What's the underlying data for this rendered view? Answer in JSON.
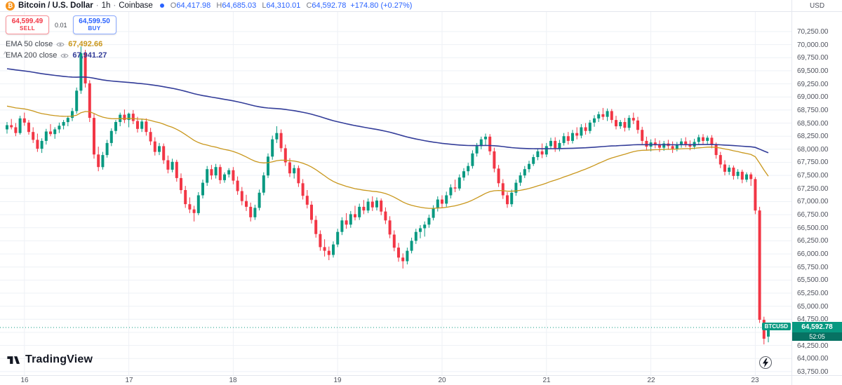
{
  "header": {
    "symbol": "Bitcoin / U.S. Dollar",
    "sep": "·",
    "interval": "1h",
    "exchange": "Coinbase",
    "ohlc": {
      "o_label": "O",
      "o": "64,417.98",
      "h_label": "H",
      "h": "64,685.03",
      "l_label": "L",
      "l": "64,310.01",
      "c_label": "C",
      "c": "64,592.78",
      "change": "+174.80 (+0.27%)",
      "value_color": "#2962ff"
    }
  },
  "trade_panel": {
    "sell_price": "64,599.49",
    "sell_label": "SELL",
    "spread": "0.01",
    "buy_price": "64,599.50",
    "buy_label": "BUY",
    "sell_color": "#f23645",
    "buy_color": "#2962ff"
  },
  "indicators": [
    {
      "name": "EMA 50 close",
      "value": "67,492.66",
      "color": "#c9971c"
    },
    {
      "name": "EMA 200 close",
      "value": "67,941.27",
      "color": "#333d99"
    }
  ],
  "price_scale": {
    "currency": "USD",
    "ticks": [
      "70,250.00",
      "70,000.00",
      "69,750.00",
      "69,500.00",
      "69,250.00",
      "69,000.00",
      "68,750.00",
      "68,500.00",
      "68,250.00",
      "68,000.00",
      "67,750.00",
      "67,500.00",
      "67,250.00",
      "67,000.00",
      "66,750.00",
      "66,500.00",
      "66,250.00",
      "66,000.00",
      "65,750.00",
      "65,500.00",
      "65,250.00",
      "65,000.00",
      "64,750.00",
      "64,500.00",
      "64,250.00",
      "64,000.00",
      "63,750.00"
    ]
  },
  "time_scale": {
    "labels": [
      "16",
      "17",
      "18",
      "19",
      "20",
      "21",
      "22",
      "23"
    ]
  },
  "price_line": {
    "symbol_tag": "BTCUSD",
    "price": "64,592.78",
    "value": 64592.78,
    "countdown": "52:05",
    "color": "#089981"
  },
  "logo": {
    "text": "TradingView"
  },
  "chart_data": {
    "type": "candlestick",
    "title": "Bitcoin / U.S. Dollar, 1h, Coinbase",
    "symbol": "BTCUSD",
    "interval": "1h",
    "exchange": "Coinbase",
    "ylim": [
      63682,
      70625
    ],
    "grid_color": "#eef1f6",
    "up_color": "#089981",
    "down_color": "#f23645",
    "x_day_ticks": [
      {
        "label": "16",
        "i": 4
      },
      {
        "label": "17",
        "i": 28
      },
      {
        "label": "18",
        "i": 52
      },
      {
        "label": "19",
        "i": 76
      },
      {
        "label": "20",
        "i": 100
      },
      {
        "label": "21",
        "i": 124
      },
      {
        "label": "22",
        "i": 148
      },
      {
        "label": "23",
        "i": 172
      }
    ],
    "ema50": {
      "period": 50,
      "seed": 68840,
      "last": 67492.66,
      "color": "#c9971c"
    },
    "ema200": {
      "period": 200,
      "seed": 69550,
      "last": 67941.27,
      "color": "#333d99"
    },
    "candles": [
      [
        68380,
        68520,
        68300,
        68460
      ],
      [
        68460,
        68580,
        68380,
        68420
      ],
      [
        68420,
        68500,
        68250,
        68310
      ],
      [
        68310,
        68640,
        68280,
        68590
      ],
      [
        68590,
        68700,
        68450,
        68510
      ],
      [
        68510,
        68560,
        68280,
        68330
      ],
      [
        68330,
        68420,
        68120,
        68180
      ],
      [
        68180,
        68300,
        67950,
        68010
      ],
      [
        68010,
        68210,
        67930,
        68160
      ],
      [
        68160,
        68390,
        68090,
        68340
      ],
      [
        68340,
        68480,
        68250,
        68290
      ],
      [
        68290,
        68420,
        68200,
        68380
      ],
      [
        68380,
        68510,
        68310,
        68450
      ],
      [
        68450,
        68560,
        68380,
        68520
      ],
      [
        68520,
        68640,
        68440,
        68600
      ],
      [
        68600,
        68790,
        68540,
        68730
      ],
      [
        68730,
        69180,
        68680,
        69120
      ],
      [
        69120,
        69965,
        69060,
        69840
      ],
      [
        69840,
        69900,
        69180,
        69260
      ],
      [
        69260,
        69320,
        68520,
        68600
      ],
      [
        68600,
        68680,
        67820,
        67900
      ],
      [
        67900,
        68050,
        67580,
        67660
      ],
      [
        67660,
        67950,
        67610,
        67890
      ],
      [
        67890,
        68180,
        67840,
        68120
      ],
      [
        68120,
        68400,
        68060,
        68350
      ],
      [
        68350,
        68560,
        68290,
        68520
      ],
      [
        68520,
        68700,
        68440,
        68660
      ],
      [
        68660,
        68760,
        68500,
        68560
      ],
      [
        68560,
        68700,
        68420,
        68680
      ],
      [
        68680,
        68750,
        68480,
        68540
      ],
      [
        68540,
        68620,
        68320,
        68390
      ],
      [
        68390,
        68580,
        68330,
        68530
      ],
      [
        68530,
        68590,
        68260,
        68330
      ],
      [
        68330,
        68410,
        68080,
        68150
      ],
      [
        68150,
        68230,
        67880,
        67950
      ],
      [
        67950,
        68120,
        67890,
        68060
      ],
      [
        68060,
        68110,
        67720,
        67790
      ],
      [
        67790,
        67880,
        67540,
        67610
      ],
      [
        67610,
        67820,
        67560,
        67760
      ],
      [
        67760,
        67800,
        67380,
        67450
      ],
      [
        67450,
        67540,
        67150,
        67220
      ],
      [
        67220,
        67300,
        66880,
        66950
      ],
      [
        66950,
        67080,
        66780,
        66850
      ],
      [
        66850,
        66920,
        66620,
        66780
      ],
      [
        66780,
        67180,
        66740,
        67120
      ],
      [
        67120,
        67420,
        67060,
        67360
      ],
      [
        67360,
        67680,
        67300,
        67620
      ],
      [
        67620,
        67700,
        67420,
        67500
      ],
      [
        67500,
        67720,
        67440,
        67660
      ],
      [
        67660,
        67710,
        67340,
        67410
      ],
      [
        67410,
        67560,
        67360,
        67520
      ],
      [
        67520,
        67640,
        67460,
        67600
      ],
      [
        67600,
        67660,
        67330,
        67400
      ],
      [
        67400,
        67480,
        67130,
        67200
      ],
      [
        67200,
        67280,
        66930,
        67010
      ],
      [
        67010,
        67130,
        66820,
        66900
      ],
      [
        66900,
        66980,
        66620,
        66700
      ],
      [
        66700,
        66940,
        66650,
        66880
      ],
      [
        66880,
        67230,
        66830,
        67170
      ],
      [
        67170,
        67560,
        67120,
        67500
      ],
      [
        67500,
        67920,
        67450,
        67860
      ],
      [
        67860,
        68260,
        67800,
        68190
      ],
      [
        68190,
        68440,
        68120,
        68310
      ],
      [
        68310,
        68380,
        67950,
        68020
      ],
      [
        68020,
        68090,
        67680,
        67750
      ],
      [
        67750,
        67830,
        67470,
        67540
      ],
      [
        67540,
        67700,
        67440,
        67640
      ],
      [
        67640,
        67690,
        67280,
        67350
      ],
      [
        67350,
        67430,
        67040,
        67110
      ],
      [
        67110,
        67220,
        66870,
        66940
      ],
      [
        66940,
        67010,
        66580,
        66650
      ],
      [
        66650,
        66730,
        66310,
        66380
      ],
      [
        66380,
        66450,
        66060,
        66130
      ],
      [
        66130,
        66280,
        65950,
        66060
      ],
      [
        66060,
        66140,
        65880,
        65980
      ],
      [
        65980,
        66240,
        65930,
        66180
      ],
      [
        66180,
        66480,
        66130,
        66420
      ],
      [
        66420,
        66700,
        66360,
        66640
      ],
      [
        66640,
        66780,
        66480,
        66560
      ],
      [
        66560,
        66820,
        66500,
        66760
      ],
      [
        66760,
        66920,
        66640,
        66700
      ],
      [
        66700,
        66960,
        66650,
        66900
      ],
      [
        66900,
        67030,
        66760,
        66830
      ],
      [
        66830,
        67060,
        66780,
        67000
      ],
      [
        67000,
        67100,
        66820,
        66890
      ],
      [
        66890,
        67080,
        66830,
        67020
      ],
      [
        67020,
        67060,
        66740,
        66810
      ],
      [
        66810,
        66890,
        66570,
        66640
      ],
      [
        66640,
        66720,
        66300,
        66370
      ],
      [
        66370,
        66450,
        66050,
        66120
      ],
      [
        66120,
        66210,
        65850,
        65930
      ],
      [
        65930,
        66010,
        65720,
        65860
      ],
      [
        65860,
        66120,
        65800,
        66060
      ],
      [
        66060,
        66310,
        66010,
        66250
      ],
      [
        66250,
        66480,
        66190,
        66420
      ],
      [
        66420,
        66550,
        66300,
        66490
      ],
      [
        66490,
        66620,
        66330,
        66560
      ],
      [
        66560,
        66750,
        66500,
        66690
      ],
      [
        66690,
        66930,
        66640,
        66870
      ],
      [
        66870,
        67100,
        66810,
        67040
      ],
      [
        67040,
        67120,
        66880,
        66960
      ],
      [
        66960,
        67190,
        66900,
        67120
      ],
      [
        67120,
        67330,
        67060,
        67270
      ],
      [
        67270,
        67420,
        67180,
        67250
      ],
      [
        67250,
        67520,
        67210,
        67460
      ],
      [
        67460,
        67640,
        67400,
        67580
      ],
      [
        67580,
        67740,
        67500,
        67680
      ],
      [
        67680,
        67980,
        67630,
        67920
      ],
      [
        67920,
        68120,
        67860,
        68060
      ],
      [
        68060,
        68240,
        68000,
        68190
      ],
      [
        68190,
        68300,
        68080,
        68240
      ],
      [
        68240,
        68290,
        67890,
        67960
      ],
      [
        67960,
        68030,
        67560,
        67630
      ],
      [
        67630,
        67700,
        67280,
        67350
      ],
      [
        67350,
        67430,
        67050,
        67120
      ],
      [
        67120,
        67180,
        66880,
        66950
      ],
      [
        66950,
        67230,
        66900,
        67170
      ],
      [
        67170,
        67420,
        67110,
        67360
      ],
      [
        67360,
        67560,
        67300,
        67500
      ],
      [
        67500,
        67680,
        67450,
        67620
      ],
      [
        67620,
        67780,
        67560,
        67720
      ],
      [
        67720,
        67900,
        67680,
        67850
      ],
      [
        67850,
        68020,
        67790,
        67960
      ],
      [
        67960,
        68110,
        67830,
        67900
      ],
      [
        67900,
        68120,
        67850,
        68060
      ],
      [
        68060,
        68220,
        68000,
        68160
      ],
      [
        68160,
        68230,
        67950,
        68020
      ],
      [
        68020,
        68180,
        67960,
        68120
      ],
      [
        68120,
        68310,
        68070,
        68250
      ],
      [
        68250,
        68330,
        68090,
        68160
      ],
      [
        68160,
        68370,
        68110,
        68310
      ],
      [
        68310,
        68420,
        68190,
        68260
      ],
      [
        68260,
        68480,
        68210,
        68420
      ],
      [
        68420,
        68500,
        68280,
        68350
      ],
      [
        68350,
        68560,
        68300,
        68510
      ],
      [
        68510,
        68650,
        68430,
        68590
      ],
      [
        68590,
        68720,
        68520,
        68670
      ],
      [
        68670,
        68790,
        68560,
        68620
      ],
      [
        68620,
        68780,
        68540,
        68730
      ],
      [
        68730,
        68770,
        68500,
        68560
      ],
      [
        68560,
        68640,
        68380,
        68440
      ],
      [
        68440,
        68560,
        68390,
        68520
      ],
      [
        68520,
        68600,
        68340,
        68410
      ],
      [
        68410,
        68650,
        68360,
        68600
      ],
      [
        68600,
        68700,
        68480,
        68550
      ],
      [
        68550,
        68620,
        68300,
        68370
      ],
      [
        68370,
        68430,
        68090,
        68160
      ],
      [
        68160,
        68240,
        67980,
        68050
      ],
      [
        68050,
        68190,
        67960,
        68130
      ],
      [
        68130,
        68210,
        68020,
        68090
      ],
      [
        68090,
        68170,
        67950,
        68030
      ],
      [
        68030,
        68160,
        67970,
        68110
      ],
      [
        68110,
        68180,
        67990,
        68060
      ],
      [
        68060,
        68150,
        67930,
        68010
      ],
      [
        68010,
        68140,
        67960,
        68090
      ],
      [
        68090,
        68210,
        68030,
        68150
      ],
      [
        68150,
        68230,
        68040,
        68100
      ],
      [
        68100,
        68170,
        67980,
        68050
      ],
      [
        68050,
        68200,
        68000,
        68140
      ],
      [
        68140,
        68280,
        68080,
        68230
      ],
      [
        68230,
        68290,
        68100,
        68160
      ],
      [
        68160,
        68260,
        68090,
        68220
      ],
      [
        68220,
        68270,
        68020,
        68080
      ],
      [
        68080,
        68130,
        67820,
        67890
      ],
      [
        67890,
        67950,
        67640,
        67710
      ],
      [
        67710,
        67790,
        67500,
        67570
      ],
      [
        67570,
        67700,
        67510,
        67650
      ],
      [
        67650,
        67690,
        67420,
        67490
      ],
      [
        67490,
        67620,
        67430,
        67570
      ],
      [
        67570,
        67610,
        67350,
        67420
      ],
      [
        67420,
        67560,
        67370,
        67520
      ],
      [
        67520,
        67560,
        67300,
        67430
      ],
      [
        67430,
        67470,
        66760,
        66830
      ],
      [
        66830,
        66900,
        64680,
        64740
      ],
      [
        64740,
        64800,
        64270,
        64380
      ],
      [
        64417.98,
        64685.03,
        64310.01,
        64592.78
      ]
    ]
  }
}
